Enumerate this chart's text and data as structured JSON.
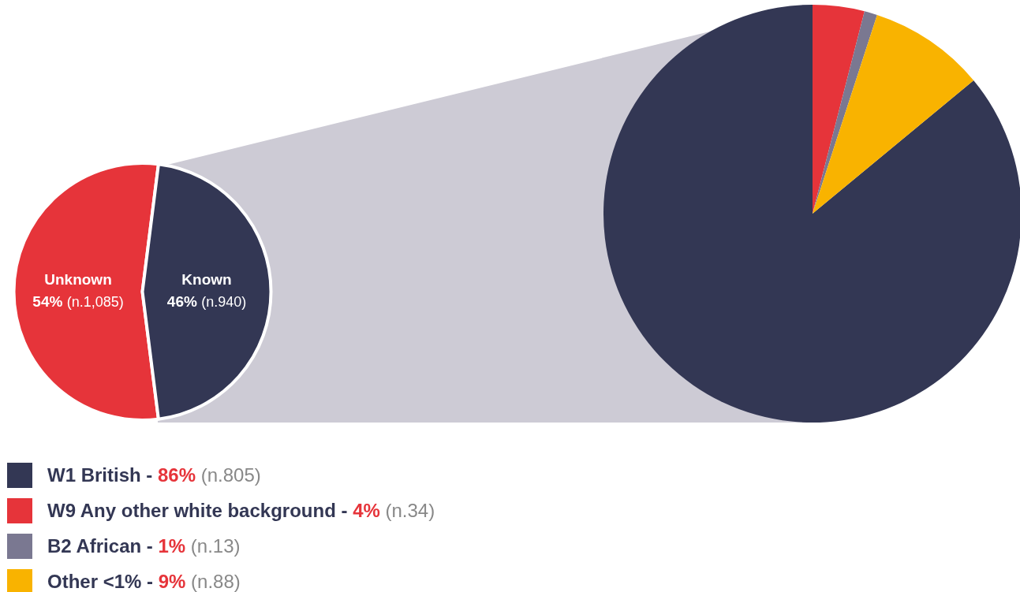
{
  "chart_data": [
    {
      "type": "pie",
      "categories": [
        "Unknown",
        "Known"
      ],
      "values": [
        54,
        46
      ],
      "colors": [
        "#e6343a",
        "#333754"
      ],
      "value_labels": [
        "54% (n.1,085)",
        "46% (n.940)"
      ]
    },
    {
      "type": "pie",
      "categories": [
        "W1 British - 86% (n.805)",
        "W9 Any other white background - 4% (n.34)",
        "B2 African - 1% (n.13)",
        "Other <1% - 9% (n.88)"
      ],
      "values": [
        86,
        4,
        1,
        9
      ],
      "colors": [
        "#333754",
        "#e6343a",
        "#7a7891",
        "#f9b300"
      ],
      "legend": "bottom left"
    }
  ]
}
